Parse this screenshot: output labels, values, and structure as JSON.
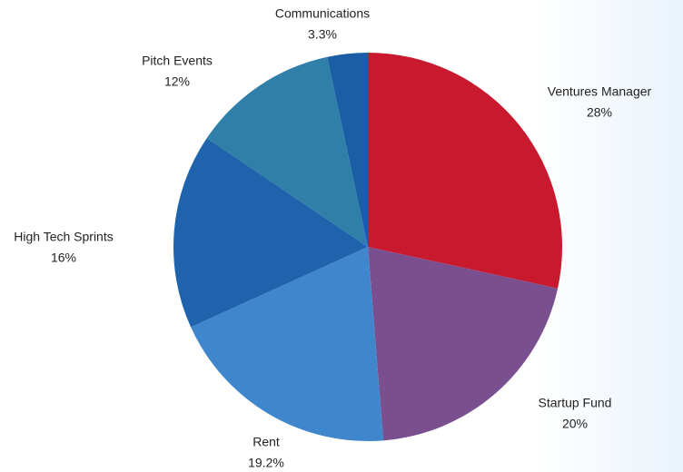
{
  "chart_data": {
    "type": "pie",
    "categories": [
      "Ventures Manager",
      "Startup Fund",
      "Rent",
      "High Tech Sprints",
      "Pitch Events",
      "Communications"
    ],
    "values": [
      28,
      20,
      19.2,
      16,
      12,
      3.3
    ],
    "value_labels": [
      "28%",
      "20%",
      "19.2%",
      "16%",
      "12%",
      "3.3%"
    ],
    "colors": [
      "#c8192e",
      "#7a4f8f",
      "#3f86cc",
      "#1f63ad",
      "#2f7fa8",
      "#1a5fa6"
    ]
  }
}
